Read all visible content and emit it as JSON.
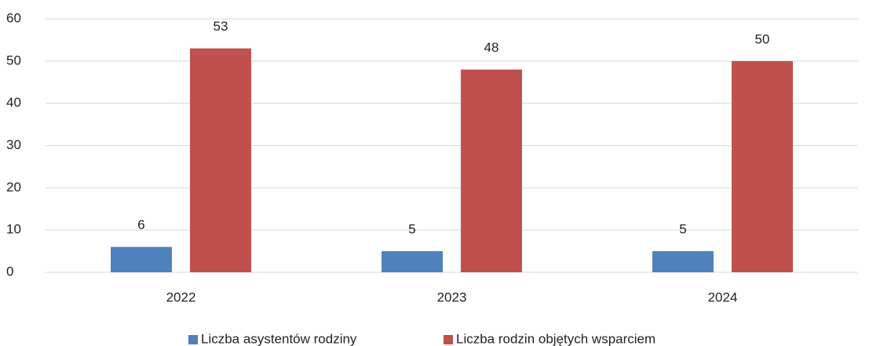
{
  "chart_data": {
    "type": "bar",
    "categories": [
      "2022",
      "2023",
      "2024"
    ],
    "series": [
      {
        "name": "Liczba asystentów rodziny",
        "color": "#4f81bd",
        "values": [
          6,
          5,
          5
        ]
      },
      {
        "name": "Liczba rodzin objętych wsparciem",
        "color": "#c0504d",
        "values": [
          53,
          48,
          50
        ]
      }
    ],
    "ylim": [
      0,
      60
    ],
    "yticks": [
      0,
      10,
      20,
      30,
      40,
      50,
      60
    ],
    "grid": true,
    "legend": "bottom"
  }
}
